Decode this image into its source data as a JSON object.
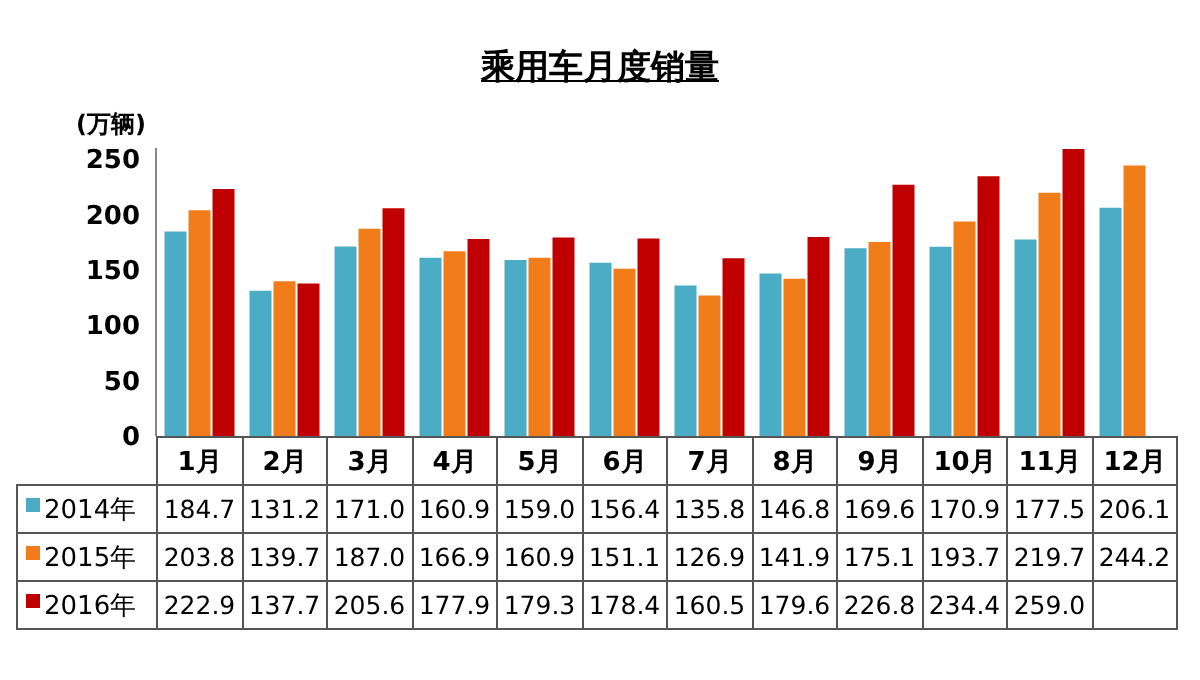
{
  "chart_data": {
    "type": "bar",
    "title": "乘用车月度销量",
    "ylabel": "(万辆)",
    "categories": [
      "1月",
      "2月",
      "3月",
      "4月",
      "5月",
      "6月",
      "7月",
      "8月",
      "9月",
      "10月",
      "11月",
      "12月"
    ],
    "series": [
      {
        "name": "2014年",
        "color": "#4bacc6",
        "values": [
          184.7,
          131.2,
          171.0,
          160.9,
          159.0,
          156.4,
          135.8,
          146.8,
          169.6,
          170.9,
          177.5,
          206.1
        ],
        "value_labels": [
          "184.7",
          "131.2",
          "171.0",
          "160.9",
          "159.0",
          "156.4",
          "135.8",
          "146.8",
          "169.6",
          "170.9",
          "177.5",
          "206.1"
        ]
      },
      {
        "name": "2015年",
        "color": "#f07d1a",
        "values": [
          203.8,
          139.7,
          187.0,
          166.9,
          160.9,
          151.1,
          126.9,
          141.9,
          175.1,
          193.7,
          219.7,
          244.2
        ],
        "value_labels": [
          "203.8",
          "139.7",
          "187.0",
          "166.9",
          "160.9",
          "151.1",
          "126.9",
          "141.9",
          "175.1",
          "193.7",
          "219.7",
          "244.2"
        ]
      },
      {
        "name": "2016年",
        "color": "#c00000",
        "values": [
          222.9,
          137.7,
          205.6,
          177.9,
          179.3,
          178.4,
          160.5,
          179.6,
          226.8,
          234.4,
          259.0,
          null
        ],
        "value_labels": [
          "222.9",
          "137.7",
          "205.6",
          "177.9",
          "179.3",
          "178.4",
          "160.5",
          "179.6",
          "226.8",
          "234.4",
          "259.0",
          null
        ]
      }
    ],
    "ylim": [
      0,
      260
    ],
    "yticks": [
      0,
      50,
      100,
      150,
      200,
      250
    ],
    "legend": "bottom"
  }
}
